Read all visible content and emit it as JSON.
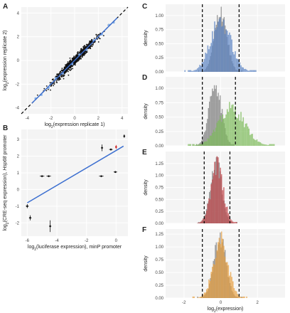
{
  "panel_letters": [
    "A",
    "B",
    "C",
    "D",
    "E",
    "F"
  ],
  "chart_data": [
    {
      "panel": "A",
      "type": "scatter",
      "xlabel_prefix": "log",
      "xlabel_sub": "2",
      "xlabel_rest": "(expression replicate 1)",
      "ylabel_prefix": "log",
      "ylabel_sub": "2",
      "ylabel_rest": "(expression replicate 2)",
      "xlim": [
        -4.5,
        4.5
      ],
      "ylim": [
        -4.5,
        4.5
      ],
      "xticks": [
        -4,
        -2,
        0,
        2,
        4
      ],
      "yticks": [
        -4,
        -2,
        0,
        2,
        4
      ],
      "identity_line": true,
      "fit_line": {
        "slope": 1.0,
        "intercept": 0.0,
        "color": "#3c6fd0"
      },
      "point_color": "#111111",
      "highlight_color": "#8ab4e8",
      "highlight_points": [
        [
          -3.3,
          -3.2
        ],
        [
          -2.8,
          -2.9
        ],
        [
          -2.2,
          -2.3
        ],
        [
          -1.6,
          -1.5
        ],
        [
          -1.0,
          -1.1
        ],
        [
          -0.2,
          -0.3
        ],
        [
          0.4,
          0.5
        ],
        [
          1.0,
          0.9
        ],
        [
          1.6,
          1.7
        ],
        [
          2.3,
          2.2
        ],
        [
          2.9,
          3.0
        ],
        [
          3.3,
          3.2
        ]
      ]
    },
    {
      "panel": "B",
      "type": "scatter",
      "xlabel_prefix": "log",
      "xlabel_sub": "2",
      "xlabel_rest": "(luciferase expression), minP promoter",
      "ylabel_prefix": "log",
      "ylabel_sub": "2",
      "ylabel_rest": "(CRE-seq expression), ",
      "ylabel_italic": "Hsp68",
      "ylabel_end": " promoter",
      "xlim": [
        -6.4,
        0.8
      ],
      "ylim": [
        -2.8,
        3.6
      ],
      "xticks": [
        -6,
        -4,
        -2,
        0
      ],
      "yticks": [
        -2,
        -1,
        0,
        1,
        2,
        3
      ],
      "fit_line": {
        "x": [
          -6.0,
          0.5
        ],
        "y": [
          -0.8,
          2.6
        ],
        "color": "#3c6fd0"
      },
      "points": [
        {
          "x": -6.0,
          "y": -1.0,
          "xerr": 0.1,
          "yerr": 0.12
        },
        {
          "x": -5.8,
          "y": -1.7,
          "xerr": 0.08,
          "yerr": 0.15
        },
        {
          "x": -5.0,
          "y": 0.8,
          "xerr": 0.15,
          "yerr": 0.05
        },
        {
          "x": -4.55,
          "y": 0.8,
          "xerr": 0.15,
          "yerr": 0.05
        },
        {
          "x": -4.45,
          "y": -2.2,
          "xerr": 0.05,
          "yerr": 0.35
        },
        {
          "x": -1.0,
          "y": 0.8,
          "xerr": 0.15,
          "yerr": 0.05
        },
        {
          "x": -0.95,
          "y": 2.5,
          "xerr": 0.06,
          "yerr": 0.2
        },
        {
          "x": -0.35,
          "y": 2.4,
          "xerr": 0.12,
          "yerr": 0.06
        },
        {
          "x": -0.05,
          "y": 1.05,
          "xerr": 0.12,
          "yerr": 0.05
        },
        {
          "x": 0.0,
          "y": 2.55,
          "xerr": 0.04,
          "yerr": 0.12,
          "color": "#cc2222"
        },
        {
          "x": 0.55,
          "y": 3.2,
          "xerr": 0.05,
          "yerr": 0.1
        }
      ]
    },
    {
      "panel": "C",
      "type": "bar",
      "color": "#5b84c4",
      "ylabel": "density",
      "xlim": [
        -3,
        3.5
      ],
      "ylim": [
        0,
        1.2
      ],
      "yticks": [
        0.0,
        0.25,
        0.5,
        0.75,
        1.0
      ],
      "ytick_labels": [
        "0.00",
        "0.25",
        "0.50",
        "0.75",
        "1.00"
      ],
      "xticks": [
        -2,
        0,
        2
      ],
      "vlines": [
        -1.0,
        1.0
      ],
      "gray_center": 0.0,
      "gray_sd": 0.33,
      "gray_peak": 1.1,
      "color_center": 0.0,
      "color_sd": 0.55,
      "color_peak": 0.9
    },
    {
      "panel": "D",
      "type": "bar",
      "color": "#7dbb5a",
      "ylabel": "density",
      "xlim": [
        -3,
        3.5
      ],
      "ylim": [
        0,
        1.2
      ],
      "yticks": [
        0.0,
        0.25,
        0.5,
        0.75,
        1.0
      ],
      "ytick_labels": [
        "0.00",
        "0.25",
        "0.50",
        "0.75",
        "1.00"
      ],
      "xticks": [
        -2,
        0,
        2
      ],
      "vlines": [
        -1.0,
        0.8
      ],
      "gray_center": -0.3,
      "gray_sd": 0.33,
      "gray_peak": 1.1,
      "color_center": 0.6,
      "color_sd": 0.7,
      "color_peak": 0.65
    },
    {
      "panel": "E",
      "type": "bar",
      "color": "#c0474b",
      "ylabel": "density",
      "xlim": [
        -3,
        3.5
      ],
      "ylim": [
        0,
        1.5
      ],
      "yticks": [
        0.0,
        0.25,
        0.5,
        0.75,
        1.0,
        1.25
      ],
      "ytick_labels": [
        "0.00",
        "0.25",
        "0.50",
        "0.75",
        "1.00",
        "1.25"
      ],
      "xticks": [
        -2,
        0,
        2
      ],
      "vlines": [
        -0.9,
        0.5
      ],
      "gray_center": -0.25,
      "gray_sd": 0.3,
      "gray_peak": 1.3,
      "color_center": -0.2,
      "color_sd": 0.33,
      "color_peak": 1.2
    },
    {
      "panel": "F",
      "type": "bar",
      "color": "#e8a040",
      "ylabel": "density",
      "xlim": [
        -3,
        3.5
      ],
      "ylim": [
        0,
        1.35
      ],
      "yticks": [
        0.0,
        0.25,
        0.5,
        0.75,
        1.0,
        1.25
      ],
      "ytick_labels": [
        "0.00",
        "0.25",
        "0.50",
        "0.75",
        "1.00",
        "1.25"
      ],
      "xticks": [
        -2,
        0,
        2
      ],
      "vlines": [
        -1.0,
        1.0
      ],
      "xlabel_prefix": "log",
      "xlabel_sub": "2",
      "xlabel_rest": "(expression)",
      "gray_center": -0.05,
      "gray_sd": 0.33,
      "gray_peak": 1.2,
      "color_center": 0.0,
      "color_sd": 0.4,
      "color_peak": 1.1
    }
  ]
}
